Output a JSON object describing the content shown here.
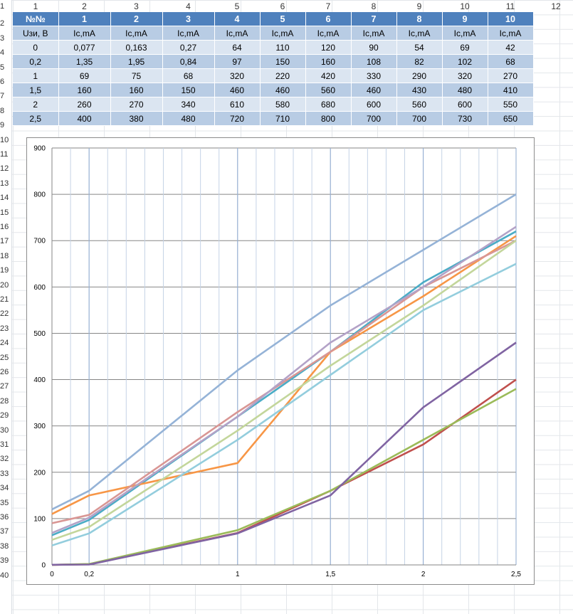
{
  "columns": [
    "1",
    "2",
    "3",
    "4",
    "5",
    "6",
    "7",
    "8",
    "9",
    "10",
    "11",
    "12"
  ],
  "rows": [
    "1",
    "2",
    "3",
    "4",
    "5",
    "6",
    "7",
    "8",
    "9",
    "10",
    "11",
    "12",
    "13",
    "14",
    "15",
    "16",
    "17",
    "18",
    "19",
    "20",
    "21",
    "22",
    "23",
    "24",
    "25",
    "26",
    "27",
    "28",
    "29",
    "30",
    "31",
    "32",
    "33",
    "34",
    "35",
    "36",
    "37",
    "38",
    "39",
    "40"
  ],
  "table": {
    "header": [
      "№№",
      "1",
      "2",
      "3",
      "4",
      "5",
      "6",
      "7",
      "8",
      "9",
      "10"
    ],
    "units": [
      "Uзи, В",
      "Ic,mA",
      "Ic,mA",
      "Ic,mA",
      "Ic,mA",
      "Ic,mA",
      "Ic,mA",
      "Ic,mA",
      "Ic,mA",
      "Ic,mA",
      "Ic,mA"
    ],
    "rows": [
      [
        "0",
        "0,077",
        "0,163",
        "0,27",
        "64",
        "110",
        "120",
        "90",
        "54",
        "69",
        "42"
      ],
      [
        "0,2",
        "1,35",
        "1,95",
        "0,84",
        "97",
        "150",
        "160",
        "108",
        "82",
        "102",
        "68"
      ],
      [
        "1",
        "69",
        "75",
        "68",
        "320",
        "220",
        "420",
        "330",
        "290",
        "320",
        "270"
      ],
      [
        "1,5",
        "160",
        "160",
        "150",
        "460",
        "460",
        "560",
        "460",
        "430",
        "480",
        "410"
      ],
      [
        "2",
        "260",
        "270",
        "340",
        "610",
        "580",
        "680",
        "600",
        "560",
        "600",
        "550"
      ],
      [
        "2,5",
        "400",
        "380",
        "480",
        "720",
        "710",
        "800",
        "700",
        "700",
        "730",
        "650"
      ]
    ]
  },
  "chart_data": {
    "type": "line",
    "x": [
      0,
      0.2,
      1,
      1.5,
      2,
      2.5
    ],
    "x_tick_labels": [
      "0",
      "0,2",
      "1",
      "1,5",
      "2",
      "2,5"
    ],
    "ylim": [
      0,
      900
    ],
    "y_ticks": [
      0,
      100,
      200,
      300,
      400,
      500,
      600,
      700,
      800,
      900
    ],
    "y_tick_labels": [
      "0",
      "100",
      "200",
      "300",
      "400",
      "500",
      "600",
      "700",
      "800",
      "900"
    ],
    "grid": true,
    "legend": "none",
    "series": [
      {
        "color": "#c0504d",
        "values": [
          0.077,
          1.35,
          69,
          160,
          260,
          400
        ]
      },
      {
        "color": "#9bbb59",
        "values": [
          0.163,
          1.95,
          75,
          160,
          270,
          380
        ]
      },
      {
        "color": "#8064a2",
        "values": [
          0.27,
          0.84,
          68,
          150,
          340,
          480
        ]
      },
      {
        "color": "#4bacc6",
        "values": [
          64,
          97,
          320,
          460,
          610,
          720
        ]
      },
      {
        "color": "#f79646",
        "values": [
          110,
          150,
          220,
          460,
          580,
          710
        ]
      },
      {
        "color": "#95b3d7",
        "values": [
          120,
          160,
          420,
          560,
          680,
          800
        ]
      },
      {
        "color": "#d99694",
        "values": [
          90,
          108,
          330,
          460,
          600,
          700
        ]
      },
      {
        "color": "#c3d69b",
        "values": [
          54,
          82,
          290,
          430,
          560,
          700
        ]
      },
      {
        "color": "#b3a2c7",
        "values": [
          69,
          102,
          320,
          480,
          600,
          730
        ]
      },
      {
        "color": "#93cddd",
        "values": [
          42,
          68,
          270,
          410,
          550,
          650
        ]
      }
    ]
  }
}
